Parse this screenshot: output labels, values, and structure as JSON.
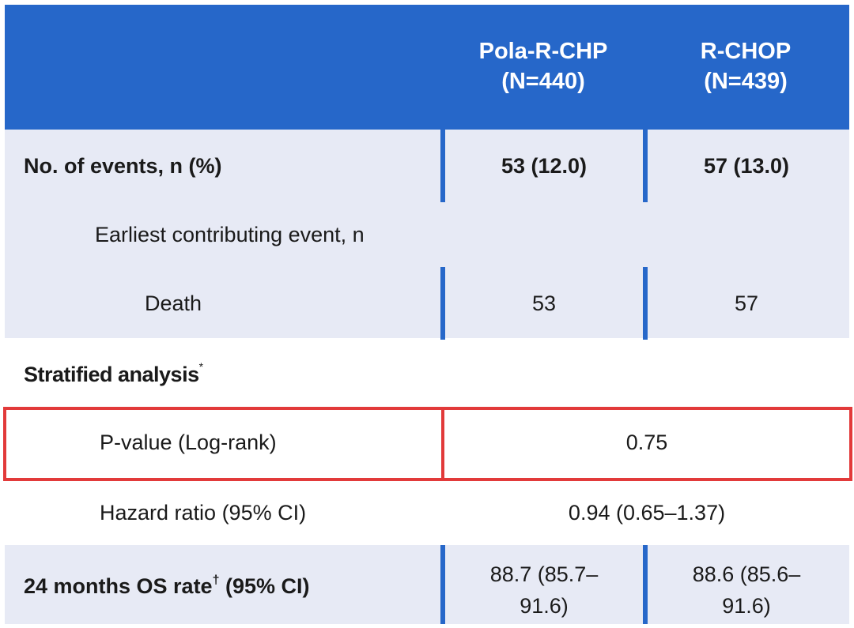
{
  "header": {
    "col1_line1": "Pola-R-CHP",
    "col1_line2": "(N=440)",
    "col2_line1": "R-CHOP",
    "col2_line2": "(N=439)"
  },
  "rows": {
    "events": {
      "label": "No. of events, n (%)",
      "col1": "53 (12.0)",
      "col2": "57 (13.0)"
    },
    "earliest": {
      "label": "Earliest contributing event, n"
    },
    "death": {
      "label": "Death",
      "col1": "53",
      "col2": "57"
    },
    "stratified": {
      "label": "Stratified analysis",
      "marker": "*"
    },
    "pvalue": {
      "label": "P-value (Log-rank)",
      "value": "0.75"
    },
    "hazard": {
      "label": "Hazard ratio (95% CI)",
      "value": "0.94 (0.65–1.37)"
    },
    "os_rate": {
      "label_pre": "24 months OS rate",
      "marker": "†",
      "label_post": " (95% CI)",
      "col1_line1": "88.7 (85.7–",
      "col1_line2": "91.6)",
      "col2_line1": "88.6 (85.6–",
      "col2_line2": "91.6)"
    }
  },
  "colors": {
    "header_bg": "#2667c9",
    "row_shade": "#e7eaf5",
    "highlight_border": "#e23a3a"
  }
}
